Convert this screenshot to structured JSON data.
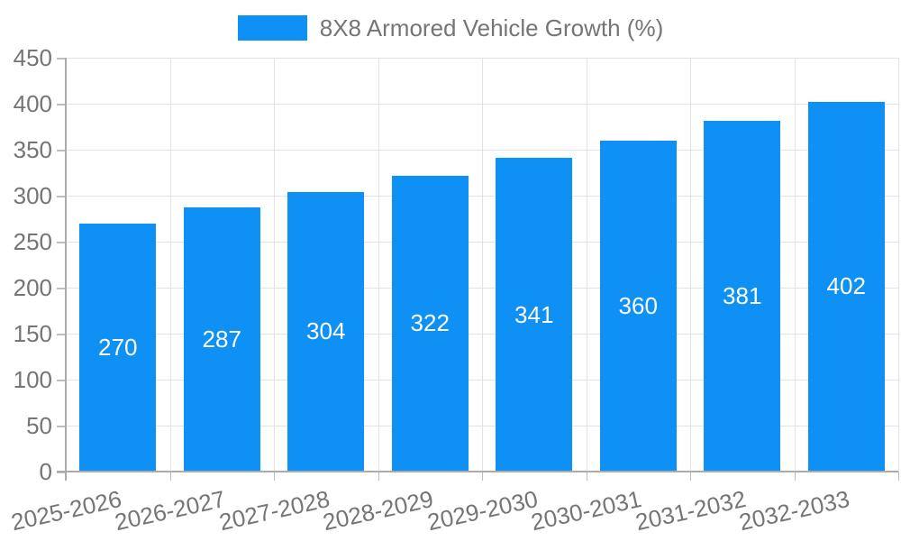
{
  "chart_data": {
    "type": "bar",
    "title": "",
    "series_name": "8X8 Armored Vehicle Growth (%)",
    "categories": [
      "2025-2026",
      "2026-2027",
      "2027-2028",
      "2028-2029",
      "2029-2030",
      "2030-2031",
      "2031-2032",
      "2032-2033"
    ],
    "values": [
      270,
      287,
      304,
      322,
      341,
      360,
      381,
      402
    ],
    "yticks": [
      0,
      50,
      100,
      150,
      200,
      250,
      300,
      350,
      400,
      450
    ],
    "ylim": [
      0,
      450
    ],
    "xlabel": "",
    "ylabel": "",
    "grid": true,
    "legend_position": "top-center",
    "bar_labels_inside": true,
    "colors": {
      "bar": "#0e90f5",
      "bar_label": "#ffffff",
      "axis_text": "#757575",
      "grid_line": "#e3e3e3",
      "axis_line": "#ababab",
      "tick_line": "#bdbdbd",
      "background": "#ffffff"
    }
  }
}
